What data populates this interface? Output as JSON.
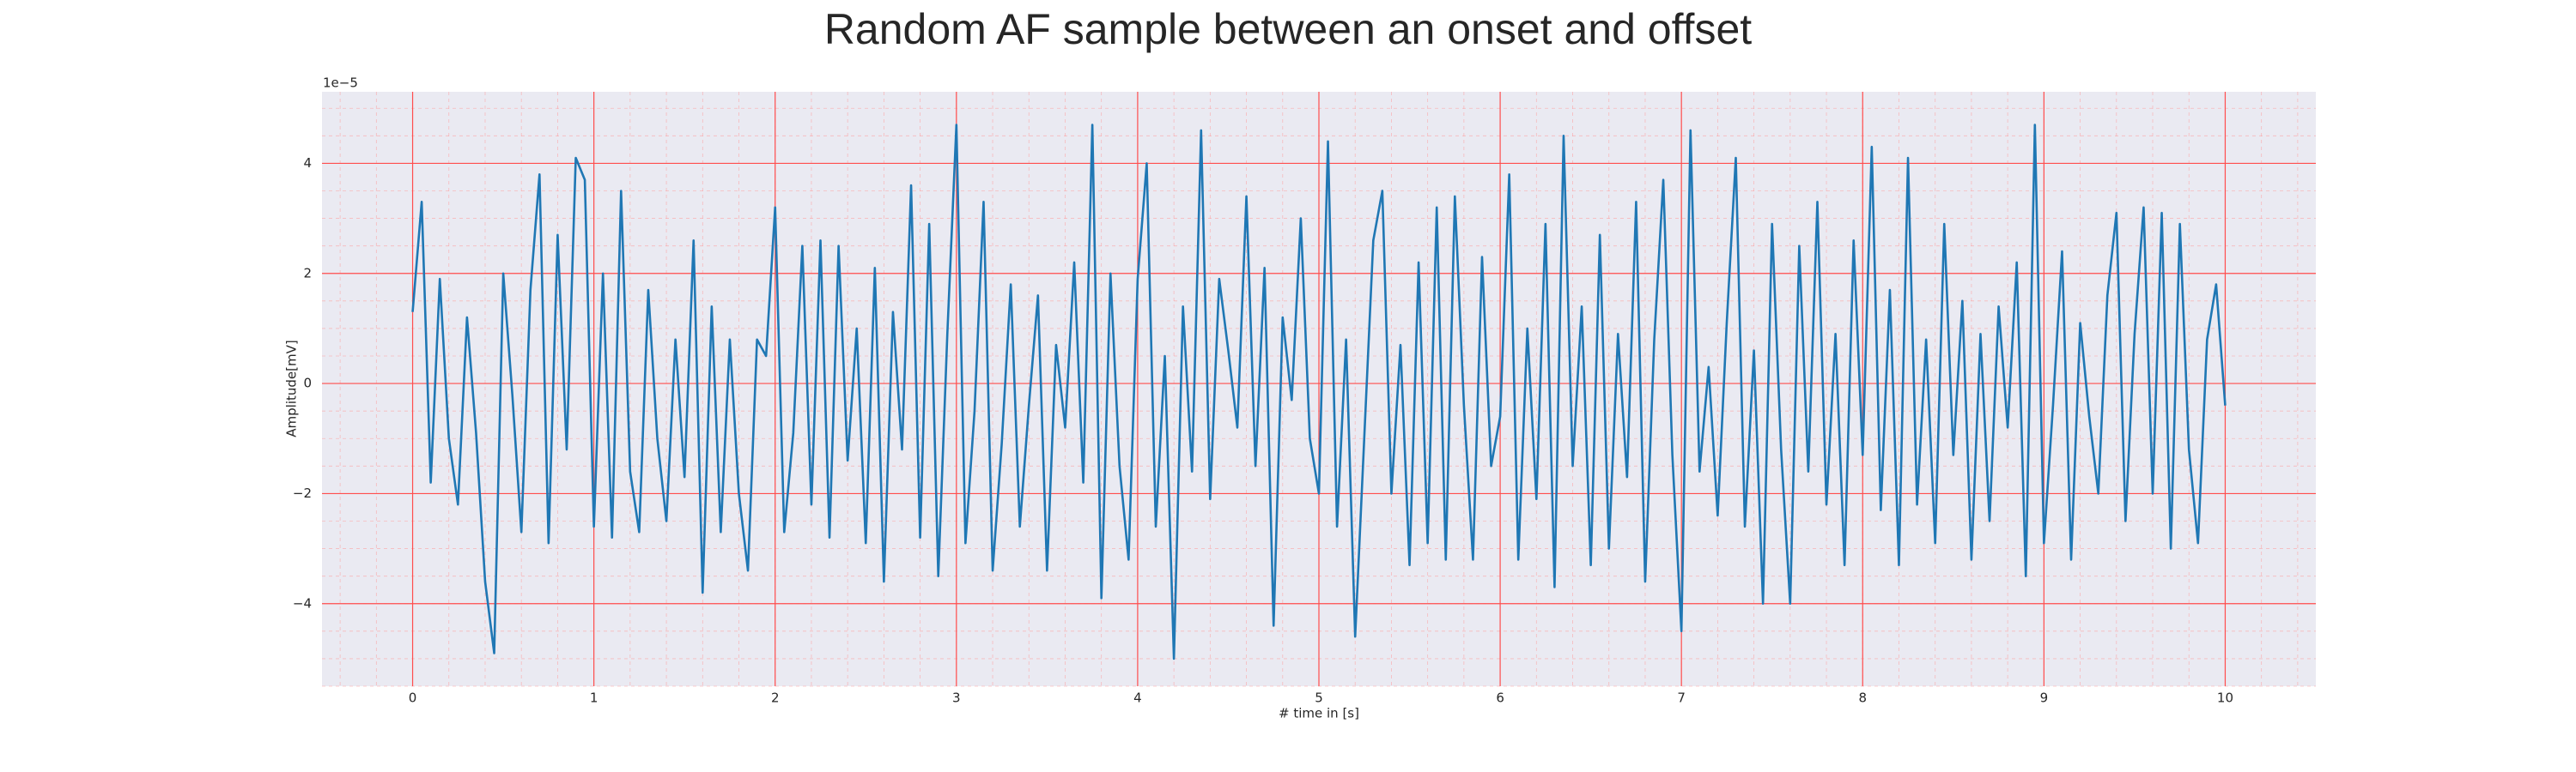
{
  "chart_data": {
    "type": "line",
    "title": "Random AF sample between an onset and offset",
    "xlabel": "# time in [s]",
    "ylabel": "Amplitude[mV]",
    "y_offset_label": "1e−5",
    "xlim": [
      -0.5,
      10.5
    ],
    "ylim": [
      -5.5,
      5.3
    ],
    "xticks": [
      0,
      1,
      2,
      3,
      4,
      5,
      6,
      7,
      8,
      9,
      10
    ],
    "yticks": [
      {
        "value": -4,
        "label": "−4"
      },
      {
        "value": -2,
        "label": "−2"
      },
      0,
      2,
      4
    ],
    "grid": true,
    "minor_grid": true,
    "x": [
      0,
      0.05,
      0.1,
      0.15,
      0.2,
      0.25,
      0.3,
      0.35,
      0.4,
      0.45,
      0.5,
      0.55,
      0.6,
      0.65,
      0.7,
      0.75,
      0.8,
      0.85,
      0.9,
      0.95,
      1,
      1.05,
      1.1,
      1.15,
      1.2,
      1.25,
      1.3,
      1.35,
      1.4,
      1.45,
      1.5,
      1.55,
      1.6,
      1.65,
      1.7,
      1.75,
      1.8,
      1.85,
      1.9,
      1.95,
      2,
      2.05,
      2.1,
      2.15,
      2.2,
      2.25,
      2.3,
      2.35,
      2.4,
      2.45,
      2.5,
      2.55,
      2.6,
      2.65,
      2.7,
      2.75,
      2.8,
      2.85,
      2.9,
      2.95,
      3,
      3.05,
      3.1,
      3.15,
      3.2,
      3.25,
      3.3,
      3.35,
      3.4,
      3.45,
      3.5,
      3.55,
      3.6,
      3.65,
      3.7,
      3.75,
      3.8,
      3.85,
      3.9,
      3.95,
      4,
      4.05,
      4.1,
      4.15,
      4.2,
      4.25,
      4.3,
      4.35,
      4.4,
      4.45,
      4.5,
      4.55,
      4.6,
      4.65,
      4.7,
      4.75,
      4.8,
      4.85,
      4.9,
      4.95,
      5,
      5.05,
      5.1,
      5.15,
      5.2,
      5.25,
      5.3,
      5.35,
      5.4,
      5.45,
      5.5,
      5.55,
      5.6,
      5.65,
      5.7,
      5.75,
      5.8,
      5.85,
      5.9,
      5.95,
      6,
      6.05,
      6.1,
      6.15,
      6.2,
      6.25,
      6.3,
      6.35,
      6.4,
      6.45,
      6.5,
      6.55,
      6.6,
      6.65,
      6.7,
      6.75,
      6.8,
      6.85,
      6.9,
      6.95,
      7,
      7.05,
      7.1,
      7.15,
      7.2,
      7.25,
      7.3,
      7.35,
      7.4,
      7.45,
      7.5,
      7.55,
      7.6,
      7.65,
      7.7,
      7.75,
      7.8,
      7.85,
      7.9,
      7.95,
      8,
      8.05,
      8.1,
      8.15,
      8.2,
      8.25,
      8.3,
      8.35,
      8.4,
      8.45,
      8.5,
      8.55,
      8.6,
      8.65,
      8.7,
      8.75,
      8.8,
      8.85,
      8.9,
      8.95,
      9,
      9.05,
      9.1,
      9.15,
      9.2,
      9.25,
      9.3,
      9.35,
      9.4,
      9.45,
      9.5,
      9.55,
      9.6,
      9.65,
      9.7,
      9.75,
      9.8,
      9.85,
      9.9,
      9.95,
      10
    ],
    "series": [
      {
        "color": "#1f77b4",
        "values": [
          1.3,
          3.3,
          -1.8,
          1.9,
          -1.0,
          -2.2,
          1.2,
          -0.9,
          -3.6,
          -4.9,
          2.0,
          -0.2,
          -2.7,
          1.7,
          3.8,
          -2.9,
          2.7,
          -1.2,
          4.1,
          3.7,
          -2.6,
          2.0,
          -2.8,
          3.5,
          -1.6,
          -2.7,
          1.7,
          -1.0,
          -2.5,
          0.8,
          -1.7,
          2.6,
          -3.8,
          1.4,
          -2.7,
          0.8,
          -2.0,
          -3.4,
          0.8,
          0.5,
          3.2,
          -2.7,
          -0.9,
          2.5,
          -2.2,
          2.6,
          -2.8,
          2.5,
          -1.4,
          1.0,
          -2.9,
          2.1,
          -3.6,
          1.3,
          -1.2,
          3.6,
          -2.8,
          2.9,
          -3.5,
          0.9,
          4.7,
          -2.9,
          -0.5,
          3.3,
          -3.4,
          -1.1,
          1.8,
          -2.6,
          -0.4,
          1.6,
          -3.4,
          0.7,
          -0.8,
          2.2,
          -1.8,
          4.7,
          -3.9,
          2.0,
          -1.5,
          -3.2,
          1.9,
          4.0,
          -2.6,
          0.5,
          -5.0,
          1.4,
          -1.6,
          4.6,
          -2.1,
          1.9,
          0.6,
          -0.8,
          3.4,
          -1.5,
          2.1,
          -4.4,
          1.2,
          -0.3,
          3.0,
          -1.0,
          -2.0,
          4.4,
          -2.6,
          0.8,
          -4.6,
          -1.0,
          2.6,
          3.5,
          -2.0,
          0.7,
          -3.3,
          2.2,
          -2.9,
          3.2,
          -3.2,
          3.4,
          -0.4,
          -3.2,
          2.3,
          -1.5,
          -0.6,
          3.8,
          -3.2,
          1.0,
          -2.1,
          2.9,
          -3.7,
          4.5,
          -1.5,
          1.4,
          -3.3,
          2.7,
          -3.0,
          0.9,
          -1.7,
          3.3,
          -3.6,
          0.8,
          3.7,
          -1.3,
          -4.5,
          4.6,
          -1.6,
          0.3,
          -2.4,
          1.1,
          4.1,
          -2.6,
          0.6,
          -4.0,
          2.9,
          -1.2,
          -4.0,
          2.5,
          -1.6,
          3.3,
          -2.2,
          0.9,
          -3.3,
          2.6,
          -1.3,
          4.3,
          -2.3,
          1.7,
          -3.3,
          4.1,
          -2.2,
          0.8,
          -2.9,
          2.9,
          -1.3,
          1.5,
          -3.2,
          0.9,
          -2.5,
          1.4,
          -0.8,
          2.2,
          -3.5,
          4.7,
          -2.9,
          -0.4,
          2.4,
          -3.2,
          1.1,
          -0.6,
          -2.0,
          1.6,
          3.1,
          -2.5,
          0.9,
          3.2,
          -2.0,
          3.1,
          -3.0,
          2.9,
          -1.2,
          -2.9,
          0.8,
          1.8,
          -0.4
        ]
      }
    ]
  }
}
